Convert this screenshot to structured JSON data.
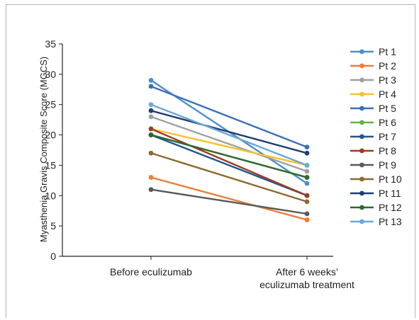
{
  "chart_data": {
    "type": "line",
    "title": "",
    "xlabel": "",
    "ylabel": "Myasthenia Gravis Composite Score (MGCS)",
    "categories": [
      "Before eculizumab",
      "After 6 weeks’ eculizumab treatment"
    ],
    "category_lines": [
      [
        "Before eculizumab"
      ],
      [
        "After 6 weeks’",
        "eculizumab treatment"
      ]
    ],
    "ylim": [
      0,
      35
    ],
    "yticks": [
      0,
      5,
      10,
      15,
      20,
      25,
      30,
      35
    ],
    "grid": false,
    "legend_position": "right",
    "series": [
      {
        "name": "Pt 1",
        "color": "#4a90d0",
        "values": [
          29,
          12
        ]
      },
      {
        "name": "Pt 2",
        "color": "#ee7d38",
        "values": [
          13,
          6
        ]
      },
      {
        "name": "Pt 3",
        "color": "#a0a0a0",
        "values": [
          23,
          14
        ]
      },
      {
        "name": "Pt 4",
        "color": "#f8c02a",
        "values": [
          21,
          15
        ]
      },
      {
        "name": "Pt 5",
        "color": "#3f6fba",
        "values": [
          28,
          18
        ]
      },
      {
        "name": "Pt 6",
        "color": "#63b346",
        "values": [
          20,
          13
        ]
      },
      {
        "name": "Pt 7",
        "color": "#24578c",
        "values": [
          20,
          10
        ]
      },
      {
        "name": "Pt 8",
        "color": "#9e3a25",
        "values": [
          21,
          10
        ]
      },
      {
        "name": "Pt 9",
        "color": "#595959",
        "values": [
          11,
          7
        ]
      },
      {
        "name": "Pt 10",
        "color": "#8c6a2e",
        "values": [
          17,
          9
        ]
      },
      {
        "name": "Pt 11",
        "color": "#1f3f72",
        "values": [
          24,
          17
        ]
      },
      {
        "name": "Pt 12",
        "color": "#2e6a31",
        "values": [
          20,
          13
        ]
      },
      {
        "name": "Pt 13",
        "color": "#6aa9d9",
        "values": [
          25,
          15
        ]
      }
    ]
  }
}
